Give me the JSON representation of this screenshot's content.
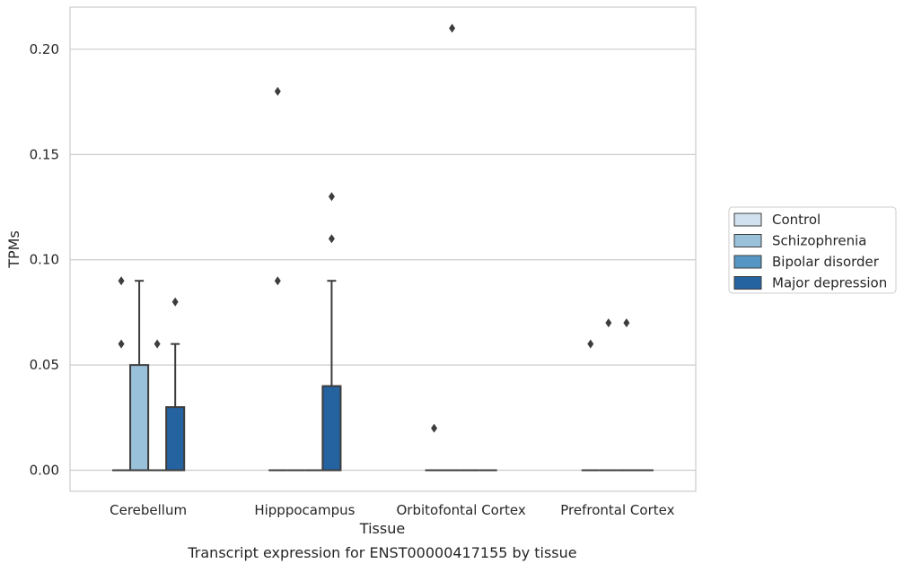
{
  "chart_data": {
    "type": "boxplot",
    "title": "",
    "caption": "Transcript expression for ENST00000417155 by tissue",
    "xlabel": "Tissue",
    "ylabel": "TPMs",
    "ylim": [
      -0.01,
      0.22
    ],
    "yticks": [
      0.0,
      0.05,
      0.1,
      0.15,
      0.2
    ],
    "ytick_labels": [
      "0.00",
      "0.05",
      "0.10",
      "0.15",
      "0.20"
    ],
    "grid": "horizontal",
    "legend_position": "right",
    "categories": [
      "Cerebellum",
      "Hipppocampus",
      "Orbitofontal Cortex",
      "Prefrontal Cortex"
    ],
    "series": [
      {
        "name": "Control",
        "color": "#d1e1ef",
        "boxes": [
          {
            "q1": 0,
            "median": 0,
            "q3": 0,
            "whisker_low": 0,
            "whisker_high": 0,
            "outliers": [
              0.06,
              0.09
            ]
          },
          {
            "q1": 0,
            "median": 0,
            "q3": 0,
            "whisker_low": 0,
            "whisker_high": 0,
            "outliers": [
              0.09,
              0.18
            ]
          },
          {
            "q1": 0,
            "median": 0,
            "q3": 0,
            "whisker_low": 0,
            "whisker_high": 0,
            "outliers": [
              0.02
            ]
          },
          {
            "q1": 0,
            "median": 0,
            "q3": 0,
            "whisker_low": 0,
            "whisker_high": 0,
            "outliers": [
              0.06
            ]
          }
        ]
      },
      {
        "name": "Schizophrenia",
        "color": "#99c1da",
        "boxes": [
          {
            "q1": 0,
            "median": 0,
            "q3": 0.05,
            "whisker_low": 0,
            "whisker_high": 0.09,
            "outliers": []
          },
          {
            "q1": 0,
            "median": 0,
            "q3": 0,
            "whisker_low": 0,
            "whisker_high": 0,
            "outliers": []
          },
          {
            "q1": 0,
            "median": 0,
            "q3": 0,
            "whisker_low": 0,
            "whisker_high": 0,
            "outliers": [
              0.21
            ]
          },
          {
            "q1": 0,
            "median": 0,
            "q3": 0,
            "whisker_low": 0,
            "whisker_high": 0,
            "outliers": [
              0.07
            ]
          }
        ]
      },
      {
        "name": "Bipolar disorder",
        "color": "#5596c4",
        "boxes": [
          {
            "q1": 0,
            "median": 0,
            "q3": 0,
            "whisker_low": 0,
            "whisker_high": 0,
            "outliers": [
              0.06
            ]
          },
          {
            "q1": 0,
            "median": 0,
            "q3": 0,
            "whisker_low": 0,
            "whisker_high": 0,
            "outliers": []
          },
          {
            "q1": 0,
            "median": 0,
            "q3": 0,
            "whisker_low": 0,
            "whisker_high": 0,
            "outliers": []
          },
          {
            "q1": 0,
            "median": 0,
            "q3": 0,
            "whisker_low": 0,
            "whisker_high": 0,
            "outliers": [
              0.07
            ]
          }
        ]
      },
      {
        "name": "Major depression",
        "color": "#2562a0",
        "boxes": [
          {
            "q1": 0,
            "median": 0,
            "q3": 0.03,
            "whisker_low": 0,
            "whisker_high": 0.06,
            "outliers": [
              0.08
            ]
          },
          {
            "q1": 0,
            "median": 0,
            "q3": 0.04,
            "whisker_low": 0,
            "whisker_high": 0.09,
            "outliers": [
              0.11,
              0.13
            ]
          },
          {
            "q1": 0,
            "median": 0,
            "q3": 0,
            "whisker_low": 0,
            "whisker_high": 0,
            "outliers": []
          },
          {
            "q1": 0,
            "median": 0,
            "q3": 0,
            "whisker_low": 0,
            "whisker_high": 0,
            "outliers": []
          }
        ]
      }
    ],
    "colors": {
      "edge": "#3d3d3d",
      "grid": "#cccccc",
      "spine": "#cccccc"
    }
  }
}
